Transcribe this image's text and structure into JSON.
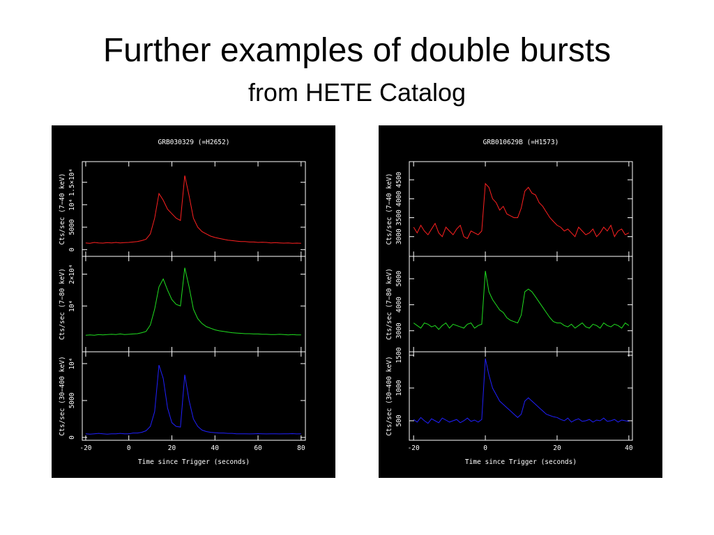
{
  "title": "Further examples of double bursts",
  "subtitle": "from HETE Catalog",
  "chart_data": [
    {
      "type": "line",
      "title": "GRB030329 (=H2652)",
      "x_label": "Time since Trigger (seconds)",
      "xlim": [
        -21.6,
        82
      ],
      "xticks": [
        -20,
        0,
        20,
        40,
        60,
        80
      ],
      "x": [
        -20,
        -18,
        -16,
        -14,
        -12,
        -10,
        -8,
        -6,
        -4,
        -2,
        0,
        2,
        4,
        6,
        8,
        10,
        12,
        14,
        16,
        18,
        20,
        22,
        24,
        26,
        28,
        30,
        32,
        34,
        36,
        38,
        40,
        42,
        44,
        46,
        48,
        50,
        52,
        54,
        56,
        58,
        60,
        62,
        64,
        66,
        68,
        70,
        72,
        74,
        76,
        78,
        80
      ],
      "panels": [
        {
          "y_label": "Cts/sec (7−40 keV)",
          "color": "#ff2020",
          "ylim": [
            -1500,
            19600
          ],
          "yticks": [
            0,
            5000,
            {
              "value": 10000,
              "label": "10⁴"
            },
            {
              "value": 15000,
              "label": "1.5×10⁴"
            }
          ],
          "values": [
            1500,
            1400,
            1600,
            1500,
            1450,
            1550,
            1500,
            1600,
            1500,
            1550,
            1600,
            1700,
            1800,
            2000,
            2300,
            3500,
            7000,
            12500,
            11000,
            9000,
            8000,
            7000,
            6500,
            16500,
            12000,
            7000,
            5000,
            4000,
            3500,
            3000,
            2700,
            2500,
            2300,
            2100,
            2000,
            1900,
            1800,
            1800,
            1700,
            1700,
            1600,
            1650,
            1600,
            1500,
            1550,
            1500,
            1450,
            1500,
            1400,
            1450,
            1400
          ]
        },
        {
          "y_label": "Cts/sec (7−80 keV)",
          "color": "#20e020",
          "ylim": [
            -4400,
            25600
          ],
          "yticks": [
            {
              "value": 10000,
              "label": "10⁴"
            },
            {
              "value": 20000,
              "label": "2×10⁴"
            }
          ],
          "values": [
            800,
            900,
            800,
            1000,
            900,
            1000,
            1100,
            1000,
            1200,
            1000,
            1100,
            1200,
            1300,
            1600,
            2000,
            4000,
            9000,
            16000,
            18500,
            15000,
            12000,
            10500,
            10000,
            22000,
            16000,
            9000,
            6000,
            4500,
            3500,
            3000,
            2500,
            2200,
            2000,
            1800,
            1600,
            1500,
            1400,
            1300,
            1300,
            1200,
            1200,
            1100,
            1100,
            1000,
            1000,
            1100,
            1000,
            900,
            1000,
            900,
            900
          ]
        },
        {
          "y_label": "Cts/sec (30−400 keV)",
          "color": "#2020ff",
          "ylim": [
            -380,
            11600
          ],
          "yticks": [
            0,
            5000,
            {
              "value": 10000,
              "label": "10⁴"
            }
          ],
          "values": [
            500,
            450,
            500,
            550,
            500,
            450,
            500,
            500,
            550,
            500,
            500,
            600,
            600,
            700,
            900,
            1500,
            3500,
            9800,
            8000,
            4000,
            2000,
            1500,
            1400,
            8500,
            5000,
            2500,
            1500,
            1000,
            800,
            700,
            650,
            600,
            600,
            550,
            550,
            500,
            500,
            500,
            480,
            500,
            520,
            500,
            480,
            500,
            500,
            480,
            500,
            500,
            520,
            480,
            500
          ]
        }
      ]
    },
    {
      "type": "line",
      "title": "GRB010629B (=H1573)",
      "x_label": "Time since Trigger (seconds)",
      "xlim": [
        -21.2,
        41
      ],
      "xticks": [
        -20,
        0,
        20,
        40
      ],
      "x": [
        -20,
        -19,
        -18,
        -17,
        -16,
        -15,
        -14,
        -13,
        -12,
        -11,
        -10,
        -9,
        -8,
        -7,
        -6,
        -5,
        -4,
        -3,
        -2,
        -1,
        0,
        1,
        2,
        3,
        4,
        5,
        6,
        7,
        8,
        9,
        10,
        11,
        12,
        13,
        14,
        15,
        16,
        17,
        18,
        19,
        20,
        21,
        22,
        23,
        24,
        25,
        26,
        27,
        28,
        29,
        30,
        31,
        32,
        33,
        34,
        35,
        36,
        37,
        38,
        39,
        40
      ],
      "panels": [
        {
          "y_label": "Cts/sec (7−40 keV)",
          "color": "#ff2020",
          "ylim": [
            2480,
            4980
          ],
          "yticks": [
            3000,
            3500,
            4000,
            4500
          ],
          "values": [
            3250,
            3100,
            3300,
            3150,
            3050,
            3200,
            3350,
            3100,
            3000,
            3250,
            3150,
            3050,
            3200,
            3300,
            3000,
            2950,
            3150,
            3100,
            3050,
            3150,
            4400,
            4300,
            4000,
            3900,
            3700,
            3800,
            3600,
            3550,
            3500,
            3500,
            3750,
            4200,
            4300,
            4150,
            4100,
            3900,
            3800,
            3650,
            3500,
            3400,
            3300,
            3250,
            3150,
            3200,
            3100,
            3000,
            3250,
            3150,
            3050,
            3100,
            3200,
            3000,
            3100,
            3250,
            3150,
            3300,
            3000,
            3150,
            3200,
            3050,
            3100
          ]
        },
        {
          "y_label": "Cts/sec (7−80 keV)",
          "color": "#20e020",
          "ylim": [
            2190,
            5860
          ],
          "yticks": [
            3000,
            4000,
            5000
          ],
          "values": [
            3300,
            3200,
            3100,
            3300,
            3250,
            3150,
            3200,
            3050,
            3200,
            3300,
            3100,
            3250,
            3200,
            3150,
            3100,
            3250,
            3300,
            3100,
            3200,
            3250,
            5300,
            4500,
            4200,
            4000,
            3800,
            3700,
            3500,
            3400,
            3350,
            3300,
            3600,
            4500,
            4600,
            4500,
            4300,
            4100,
            3900,
            3700,
            3500,
            3350,
            3300,
            3300,
            3200,
            3150,
            3250,
            3100,
            3200,
            3300,
            3150,
            3100,
            3250,
            3200,
            3100,
            3300,
            3200,
            3150,
            3250,
            3200,
            3100,
            3300,
            3200
          ]
        },
        {
          "y_label": "Cts/sec (30−400 keV)",
          "color": "#2020ff",
          "ylim": [
            202,
            1553
          ],
          "yticks": [
            500,
            1000,
            1500
          ],
          "values": [
            520,
            480,
            550,
            500,
            460,
            530,
            500,
            470,
            540,
            510,
            480,
            500,
            520,
            470,
            500,
            540,
            490,
            510,
            480,
            520,
            1450,
            1200,
            1000,
            900,
            800,
            750,
            700,
            650,
            600,
            550,
            600,
            800,
            850,
            800,
            750,
            700,
            650,
            600,
            580,
            560,
            550,
            520,
            500,
            540,
            480,
            510,
            530,
            490,
            500,
            520,
            480,
            510,
            500,
            540,
            490,
            500,
            520,
            480,
            510,
            500,
            490
          ]
        }
      ]
    }
  ]
}
